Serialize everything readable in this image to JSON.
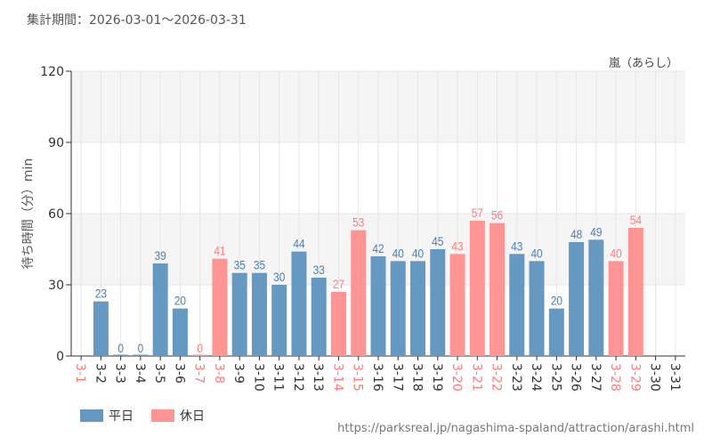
{
  "period": "集計期間：2026-03-01～2026-03-31",
  "attraction": "嵐（あらし）",
  "url": "https://parksreal.jp/nagashima-spaland/attraction/arashi.html",
  "colors": {
    "weekday": "#6699c2",
    "holiday": "#ff9494",
    "weekday_label": "#4a7fb0",
    "holiday_label": "#ff7b7b"
  },
  "chart_data": {
    "type": "bar",
    "ylabel": "待ち時間（分）min",
    "ylim": [
      0,
      120
    ],
    "yticks": [
      0,
      30,
      60,
      90,
      120
    ],
    "grid": true,
    "legend_placement": "bottom-left",
    "legend": [
      {
        "key": "weekday",
        "label": "平日"
      },
      {
        "key": "holiday",
        "label": "休日"
      }
    ],
    "categories": [
      "3-1",
      "3-2",
      "3-3",
      "3-4",
      "3-5",
      "3-6",
      "3-7",
      "3-8",
      "3-9",
      "3-10",
      "3-11",
      "3-12",
      "3-13",
      "3-14",
      "3-15",
      "3-16",
      "3-17",
      "3-18",
      "3-19",
      "3-20",
      "3-21",
      "3-22",
      "3-23",
      "3-24",
      "3-25",
      "3-26",
      "3-27",
      "3-28",
      "3-29",
      "3-30",
      "3-31"
    ],
    "holiday": [
      true,
      false,
      false,
      false,
      false,
      false,
      true,
      true,
      false,
      false,
      false,
      false,
      false,
      true,
      true,
      false,
      false,
      false,
      false,
      true,
      true,
      true,
      false,
      false,
      false,
      false,
      false,
      true,
      true,
      false,
      false
    ],
    "values": [
      null,
      23,
      0,
      0,
      39,
      20,
      0,
      41,
      35,
      35,
      30,
      44,
      33,
      27,
      53,
      42,
      40,
      40,
      45,
      43,
      57,
      56,
      43,
      40,
      20,
      48,
      49,
      40,
      54,
      null,
      null
    ]
  }
}
